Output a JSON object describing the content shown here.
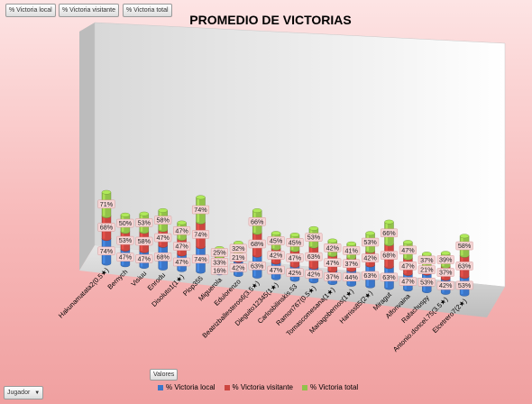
{
  "filter_buttons": [
    "% Victoria local",
    "% Victoria visitante",
    "% Victoria total"
  ],
  "row_field": "Jugador",
  "values_label": "Valores",
  "chart_data": {
    "type": "bar",
    "stacked": true,
    "three_d": true,
    "title": "PROMEDIO DE VICTORIAS",
    "legend_position": "bottom",
    "categories": [
      "Hakunamatata2(0.5★)",
      "Bernych",
      "Visiuu",
      "Enrodu",
      "Disoluto1(1★)",
      "Plop355",
      "Miguerola",
      "Edulorenzo",
      "Beatrizballesteros6(3.5★)",
      "Dieguito12345(1★)",
      "Carlosbilinskis.53",
      "Ramon767(0.5★)",
      "Tomascomesana(1★)",
      "Mariagobernos(1★)",
      "Harriss85(2★)",
      "Miragut",
      "Alfonvaina",
      "Rafachuspy",
      "Antonio.doncel.75(3.5★)",
      "Elcetrero7(2★)"
    ],
    "series": [
      {
        "name": "% Victoria local",
        "color": "#3b76c9",
        "values": [
          74,
          47,
          47,
          68,
          47,
          74,
          16,
          42,
          63,
          47,
          42,
          42,
          37,
          44,
          63,
          63,
          47,
          53,
          42,
          53
        ]
      },
      {
        "name": "% Victoria visitante",
        "color": "#cc4640",
        "values": [
          68,
          53,
          58,
          47,
          47,
          74,
          33,
          21,
          68,
          42,
          47,
          63,
          47,
          37,
          42,
          68,
          47,
          21,
          37,
          63
        ]
      },
      {
        "name": "% Victoria total",
        "color": "#92c24a",
        "values": [
          71,
          50,
          53,
          58,
          47,
          74,
          25,
          32,
          66,
          45,
          45,
          53,
          42,
          41,
          53,
          66,
          47,
          37,
          39,
          58
        ]
      }
    ],
    "value_labels": [
      [
        "74%",
        "68%",
        "71%"
      ],
      [
        "47%",
        "53%",
        "50%"
      ],
      [
        "47%",
        "58%",
        "53%"
      ],
      [
        "68%",
        "47%",
        "58%"
      ],
      [
        "47%",
        "47%",
        "47%"
      ],
      [
        "74%",
        "74%",
        "74%"
      ],
      [
        "16%",
        "33%",
        "25%"
      ],
      [
        "42%",
        "21%",
        "32%"
      ],
      [
        "63%",
        "68%",
        "66%"
      ],
      [
        "47%",
        "42%",
        "45%"
      ],
      [
        "42%",
        "47%",
        "45%"
      ],
      [
        "42%",
        "63%",
        "53%"
      ],
      [
        "37%",
        "47%",
        "42%"
      ],
      [
        "44%",
        "37%",
        "41%"
      ],
      [
        "63%",
        "42%",
        "53%"
      ],
      [
        "63%",
        "68%",
        "66%"
      ],
      [
        "47%",
        "47%",
        "47%"
      ],
      [
        "53%",
        "21%",
        "37%"
      ],
      [
        "42%",
        "37%",
        "39%"
      ],
      [
        "53%",
        "63%",
        "58%"
      ]
    ]
  }
}
